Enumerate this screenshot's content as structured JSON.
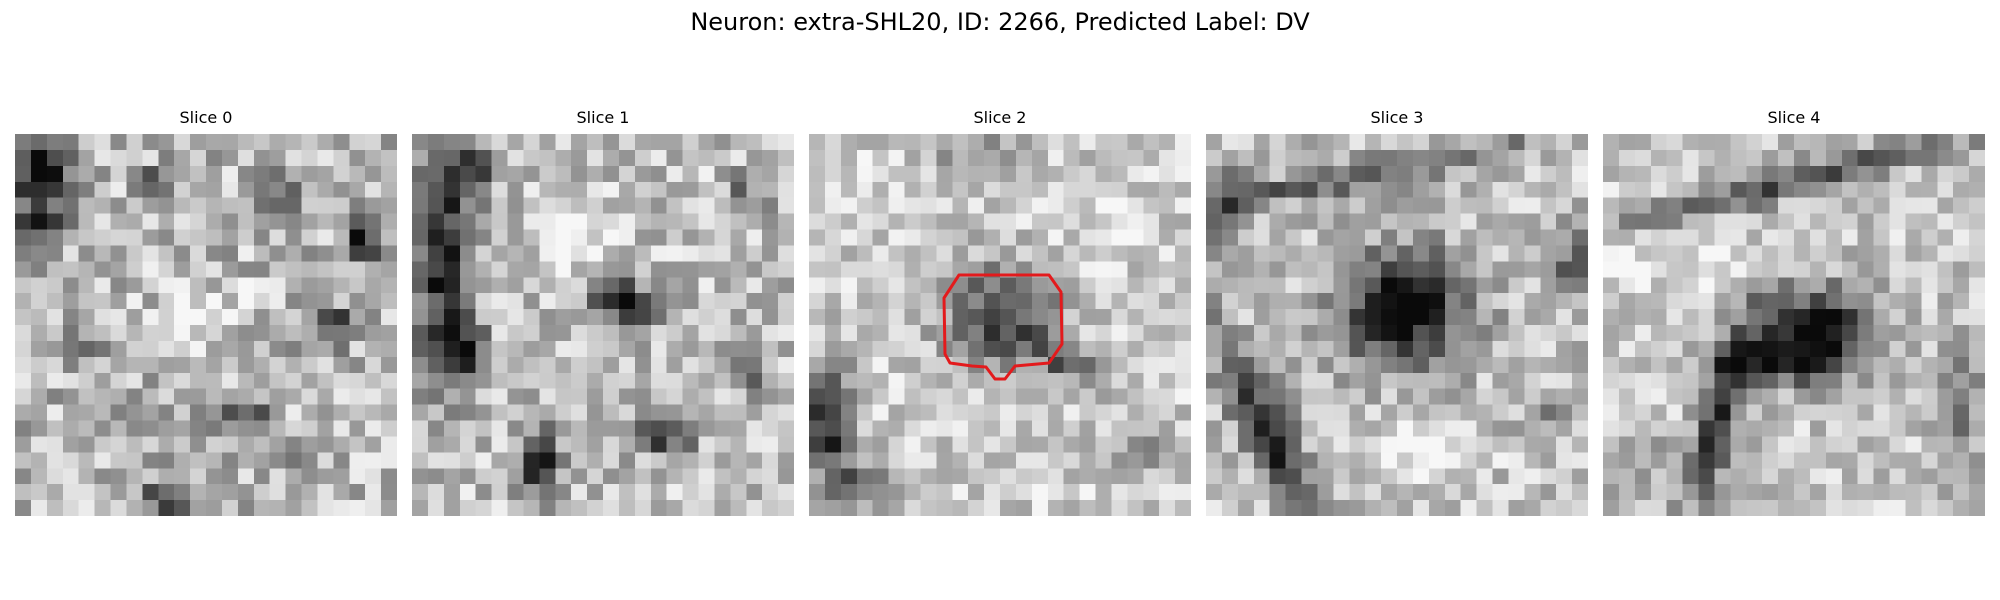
{
  "figure": {
    "title": "Neuron: extra-SHL20, ID: 2266, Predicted Label: DV"
  },
  "slices": [
    {
      "title": "Slice 0",
      "contour": false
    },
    {
      "title": "Slice 1",
      "contour": false
    },
    {
      "title": "Slice 2",
      "contour": true
    },
    {
      "title": "Slice 3",
      "contour": false
    },
    {
      "title": "Slice 4",
      "contour": false
    }
  ],
  "colors": {
    "background": "#ffffff",
    "contour": "#e31a1c"
  }
}
